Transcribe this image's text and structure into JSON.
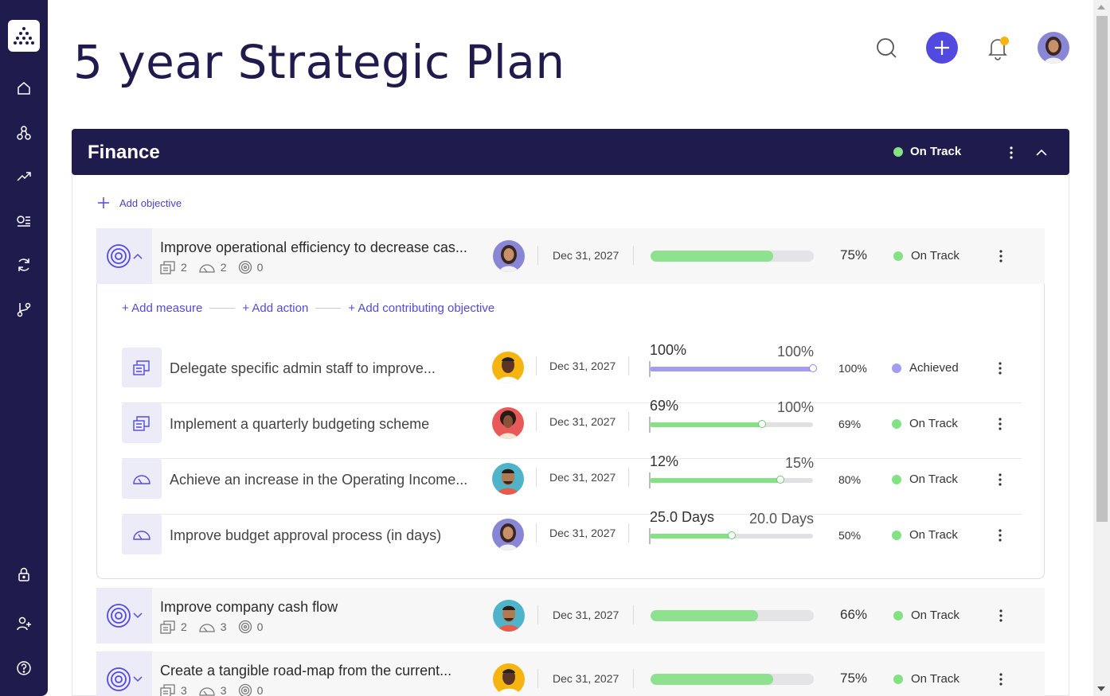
{
  "page": {
    "title": "5 year Strategic Plan"
  },
  "sidebar": {
    "items": [
      {
        "name": "home"
      },
      {
        "name": "hierarchy"
      },
      {
        "name": "trending"
      },
      {
        "name": "list"
      },
      {
        "name": "refresh"
      },
      {
        "name": "branch"
      },
      {
        "name": "lock"
      },
      {
        "name": "add-user"
      },
      {
        "name": "help"
      }
    ]
  },
  "panel": {
    "title": "Finance",
    "status": "On Track",
    "add_objective": "Add objective"
  },
  "colors": {
    "navy": "#1f1b4d",
    "accent": "#5249e0",
    "on_track": "#84e184",
    "achieved": "#a49cf0",
    "notification": "#f6b411"
  },
  "links": {
    "add_measure": "+ Add measure",
    "add_action": "+ Add action",
    "add_contributing": "+ Add contributing objective"
  },
  "objectives": [
    {
      "title": "Improve operational efficiency to decrease cas...",
      "actions": "2",
      "measures": "2",
      "contributing": "0",
      "date": "Dec 31, 2027",
      "percent": "75%",
      "progress": 0.75,
      "status": "On Track"
    },
    {
      "title": "Improve company cash flow",
      "actions": "2",
      "measures": "3",
      "contributing": "0",
      "date": "Dec 31, 2027",
      "percent": "66%",
      "progress": 0.66,
      "status": "On Track"
    },
    {
      "title": "Create a tangible road-map from the current...",
      "actions": "3",
      "measures": "3",
      "contributing": "0",
      "date": "Dec 31, 2027",
      "percent": "75%",
      "progress": 0.75,
      "status": "On Track"
    }
  ],
  "sub_items": [
    {
      "type": "action",
      "title": "Delegate specific admin staff to improve...",
      "date": "Dec 31, 2027",
      "current": "100%",
      "target": "100%",
      "percent": "100%",
      "progress": 1.0,
      "status": "Achieved"
    },
    {
      "type": "action",
      "title": "Implement a quarterly budgeting scheme",
      "date": "Dec 31, 2027",
      "current": "69%",
      "target": "100%",
      "percent": "69%",
      "progress": 0.69,
      "status": "On Track"
    },
    {
      "type": "measure",
      "title": "Achieve an increase in the Operating Income...",
      "date": "Dec 31, 2027",
      "current": "12%",
      "target": "15%",
      "percent": "80%",
      "progress": 0.8,
      "status": "On Track"
    },
    {
      "type": "measure",
      "title": "Improve budget approval process (in days)",
      "date": "Dec 31, 2027",
      "current": "25.0 Days",
      "target": "20.0 Days",
      "percent": "50%",
      "progress": 0.5,
      "status": "On Track"
    }
  ]
}
